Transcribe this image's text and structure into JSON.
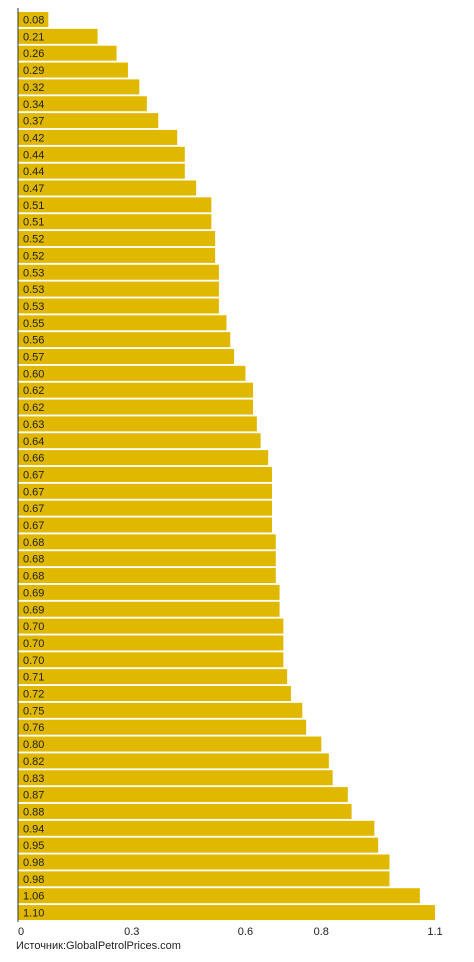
{
  "chart_data": {
    "type": "bar",
    "orientation": "horizontal",
    "values": [
      0.08,
      0.21,
      0.26,
      0.29,
      0.32,
      0.34,
      0.37,
      0.42,
      0.44,
      0.44,
      0.47,
      0.51,
      0.51,
      0.52,
      0.52,
      0.53,
      0.53,
      0.53,
      0.55,
      0.56,
      0.57,
      0.6,
      0.62,
      0.62,
      0.63,
      0.64,
      0.66,
      0.67,
      0.67,
      0.67,
      0.67,
      0.68,
      0.68,
      0.68,
      0.69,
      0.69,
      0.7,
      0.7,
      0.7,
      0.71,
      0.72,
      0.75,
      0.76,
      0.8,
      0.82,
      0.83,
      0.87,
      0.88,
      0.94,
      0.95,
      0.98,
      0.98,
      1.06,
      1.1
    ],
    "labels": [
      "0.08",
      "0.21",
      "0.26",
      "0.29",
      "0.32",
      "0.34",
      "0.37",
      "0.42",
      "0.44",
      "0.44",
      "0.47",
      "0.51",
      "0.51",
      "0.52",
      "0.52",
      "0.53",
      "0.53",
      "0.53",
      "0.55",
      "0.56",
      "0.57",
      "0.60",
      "0.62",
      "0.62",
      "0.63",
      "0.64",
      "0.66",
      "0.67",
      "0.67",
      "0.67",
      "0.67",
      "0.68",
      "0.68",
      "0.68",
      "0.69",
      "0.69",
      "0.70",
      "0.70",
      "0.70",
      "0.71",
      "0.72",
      "0.75",
      "0.76",
      "0.80",
      "0.82",
      "0.83",
      "0.87",
      "0.88",
      "0.94",
      "0.95",
      "0.98",
      "0.98",
      "1.06",
      "1.10"
    ],
    "x_ticks": [
      0,
      0.3,
      0.6,
      0.8,
      1.1
    ],
    "x_tick_labels": [
      "0",
      "0.3",
      "0.6",
      "0.8",
      "1.1"
    ],
    "xlim": [
      0,
      1.1
    ],
    "bar_color": "#e0b800",
    "grid": false,
    "legend": "none"
  },
  "source": {
    "prefix": "Источник:",
    "name": "GlobalPetrolPrices.com"
  }
}
